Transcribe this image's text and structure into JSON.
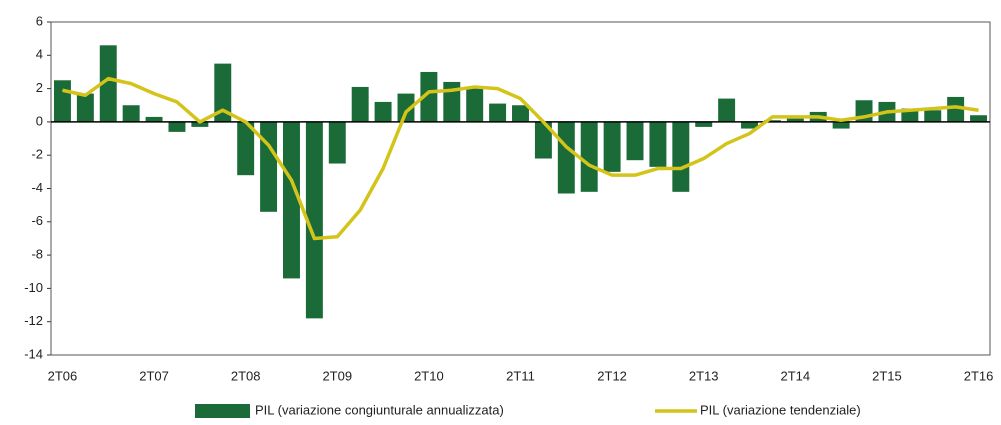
{
  "chart_data": {
    "type": "bar-line",
    "categories": [
      "2T06",
      null,
      null,
      null,
      "2T07",
      null,
      null,
      null,
      "2T08",
      null,
      null,
      null,
      "2T09",
      null,
      null,
      null,
      "2T10",
      null,
      null,
      null,
      "2T11",
      null,
      null,
      null,
      "2T12",
      null,
      null,
      null,
      "2T13",
      null,
      null,
      null,
      "2T14",
      null,
      null,
      null,
      "2T15",
      null,
      null,
      null,
      "2T16"
    ],
    "series": [
      {
        "name": "PIL (variazione congiunturale annualizzata)",
        "type": "bar",
        "color": "#1a6b38",
        "values": [
          2.5,
          1.7,
          4.6,
          1.0,
          0.3,
          -0.6,
          -0.3,
          3.5,
          -3.2,
          -5.4,
          -9.4,
          -11.8,
          -2.5,
          2.1,
          1.2,
          1.7,
          3.0,
          2.4,
          2.1,
          1.1,
          1.0,
          -2.2,
          -4.3,
          -4.2,
          -3.0,
          -2.3,
          -2.7,
          -4.2,
          -0.3,
          1.4,
          -0.4,
          0.1,
          0.2,
          0.6,
          -0.4,
          1.3,
          1.2,
          0.8,
          0.7,
          1.5,
          0.4
        ]
      },
      {
        "name": "PIL (variazione tendenziale)",
        "type": "line",
        "color": "#d4c41a",
        "values": [
          1.9,
          1.6,
          2.6,
          2.3,
          1.7,
          1.2,
          0.0,
          0.7,
          0.0,
          -1.4,
          -3.5,
          -7.0,
          -6.9,
          -5.3,
          -2.8,
          0.6,
          1.8,
          1.9,
          2.1,
          2.0,
          1.4,
          0.0,
          -1.5,
          -2.6,
          -3.2,
          -3.2,
          -2.8,
          -2.8,
          -2.2,
          -1.3,
          -0.7,
          0.3,
          0.3,
          0.3,
          0.1,
          0.3,
          0.6,
          0.7,
          0.8,
          0.9,
          0.7
        ]
      }
    ],
    "ylim": [
      -14,
      6
    ],
    "yticks": [
      -14,
      -12,
      -10,
      -8,
      -6,
      -4,
      -2,
      0,
      2,
      4,
      6
    ],
    "legend": "bottom"
  }
}
